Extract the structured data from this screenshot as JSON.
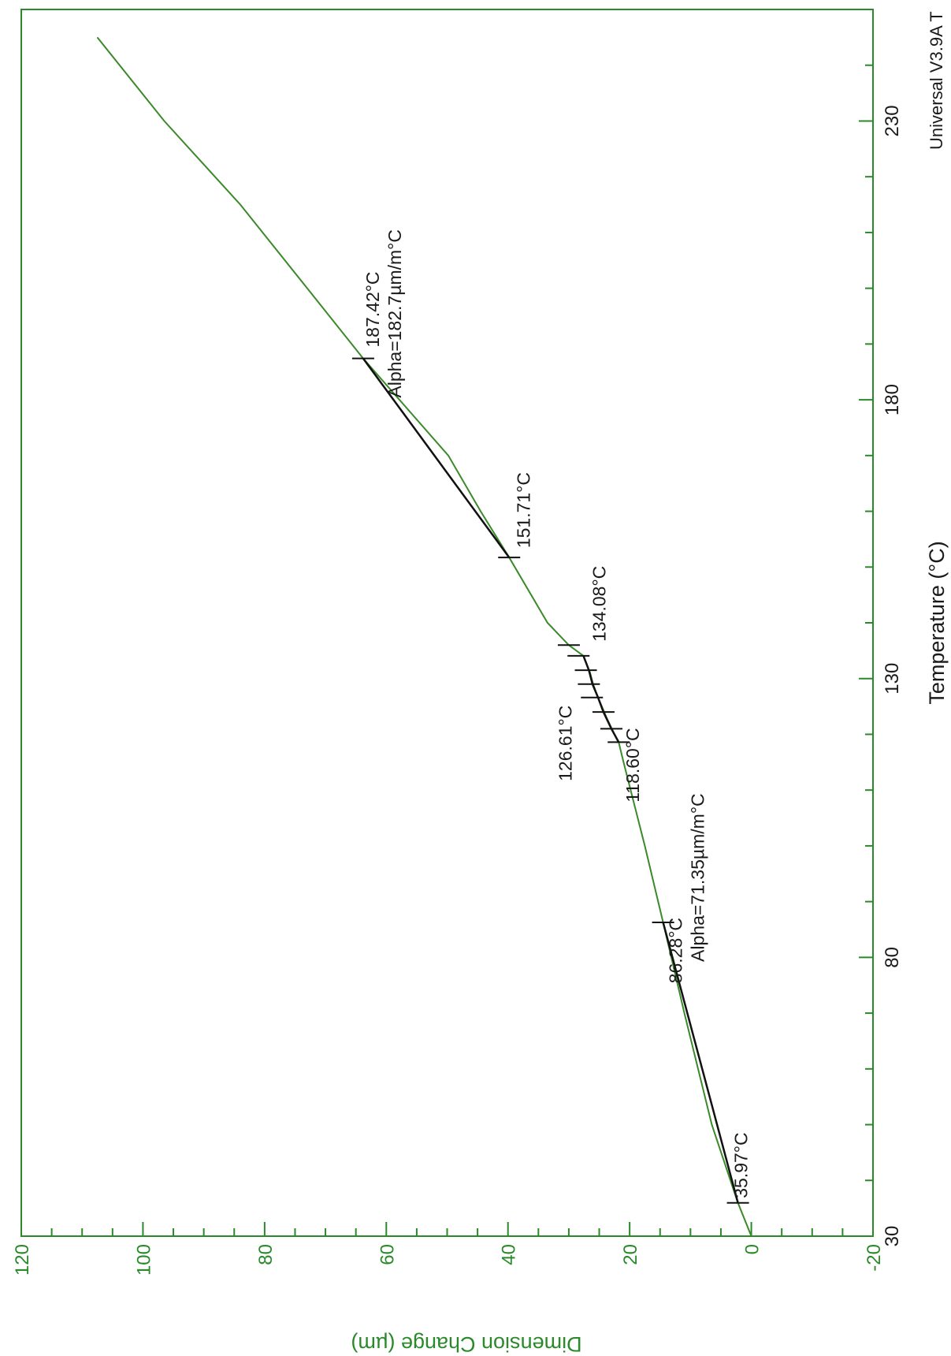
{
  "chart_data": {
    "type": "line",
    "orientation": "rotated-90-clockwise",
    "xlabel": "Temperature (°C)",
    "ylabel": "Dimension Change (µm)",
    "xlim": [
      30,
      250
    ],
    "ylim": [
      -20,
      120
    ],
    "x_ticks": [
      "30",
      "80",
      "130",
      "180",
      "230"
    ],
    "y_ticks": [
      "-20",
      "0",
      "20",
      "40",
      "60",
      "80",
      "100",
      "120"
    ],
    "software_label": "Universal V3.9A T",
    "colors": {
      "axis": "#2a8a2a",
      "curve": "#3a8a2a",
      "fit": "#111111"
    },
    "series": [
      {
        "x": [
          30,
          35.97,
          50,
          70,
          86.28,
          100,
          115,
          118.6,
          120,
          123,
          126.61,
          129,
          131,
          134.08,
          136,
          140,
          151.71,
          160,
          170,
          187.42,
          200,
          215,
          230,
          245
        ],
        "y": [
          0.0,
          2.2,
          6.5,
          11.0,
          14.5,
          17.5,
          21.0,
          21.8,
          22.5,
          23.8,
          25.2,
          26.0,
          26.5,
          27.6,
          30.0,
          33.5,
          39.8,
          44.5,
          49.8,
          63.8,
          73.0,
          84.0,
          96.5,
          107.5
        ]
      }
    ],
    "fit_segments": [
      {
        "x": [
          35.97,
          86.28
        ],
        "y": [
          2.2,
          14.5
        ]
      },
      {
        "x": [
          151.71,
          187.42
        ],
        "y": [
          39.8,
          63.8
        ]
      },
      {
        "x": [
          118.6,
          121,
          124,
          126.61,
          129,
          131.5,
          134.08
        ],
        "y": [
          21.8,
          23.0,
          24.3,
          25.2,
          26.1,
          26.7,
          27.6
        ]
      }
    ],
    "markers": [
      {
        "x": 35.97,
        "y": 2.2,
        "label": "35.97°C"
      },
      {
        "x": 86.28,
        "y": 14.5,
        "label": "86.28°C"
      },
      {
        "x": 118.6,
        "y": 21.8,
        "label": "118.60°C"
      },
      {
        "x": 121,
        "y": 23.0,
        "label": ""
      },
      {
        "x": 124,
        "y": 24.3,
        "label": ""
      },
      {
        "x": 126.61,
        "y": 26.2,
        "label": "126.61°C"
      },
      {
        "x": 129,
        "y": 26.7,
        "label": ""
      },
      {
        "x": 131.5,
        "y": 27.2,
        "label": ""
      },
      {
        "x": 134.08,
        "y": 28.4,
        "label": "134.08°C"
      },
      {
        "x": 136,
        "y": 30.0,
        "label": ""
      },
      {
        "x": 151.71,
        "y": 39.8,
        "label": "151.71°C"
      },
      {
        "x": 187.42,
        "y": 63.8,
        "label": "187.42°C"
      }
    ],
    "annotations": [
      {
        "x": 86.28,
        "y": 14.5,
        "text": "Alpha=71.35µm/m°C"
      },
      {
        "x": 187.42,
        "y": 63.8,
        "text": "Alpha=182.7µm/m°C"
      }
    ]
  }
}
